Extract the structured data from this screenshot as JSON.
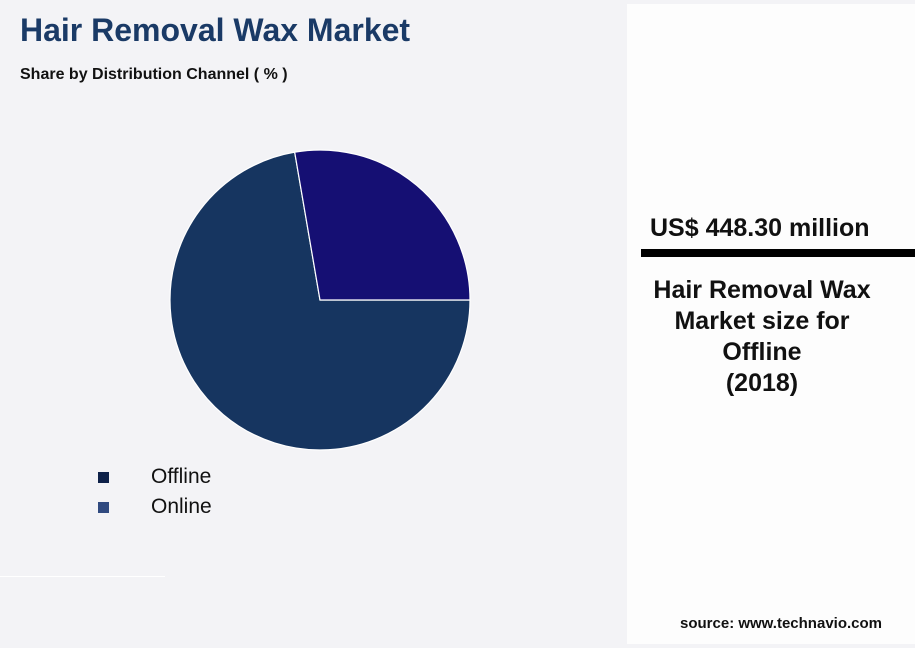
{
  "title": "Hair Removal Wax Market",
  "subtitle": "Share by Distribution Channel ( % )",
  "chart_data": {
    "type": "pie",
    "title": "Hair Removal Wax Market",
    "subtitle": "Share by Distribution Channel ( % )",
    "slices": [
      {
        "name": "Offline",
        "value": 72.3,
        "color": "#163560"
      },
      {
        "name": "Online",
        "value": 27.7,
        "color": "#150f73"
      }
    ],
    "legend": {
      "placement": "bottom-left",
      "items": [
        {
          "label": "Offline",
          "color": "#0e2149"
        },
        {
          "label": "Online",
          "color": "#304a80"
        }
      ]
    }
  },
  "highlight": {
    "value": "US$ 448.30 million",
    "description": "Hair Removal Wax\nMarket size for\nOffline\n(2018)"
  },
  "source": "source: www.technavio.com"
}
